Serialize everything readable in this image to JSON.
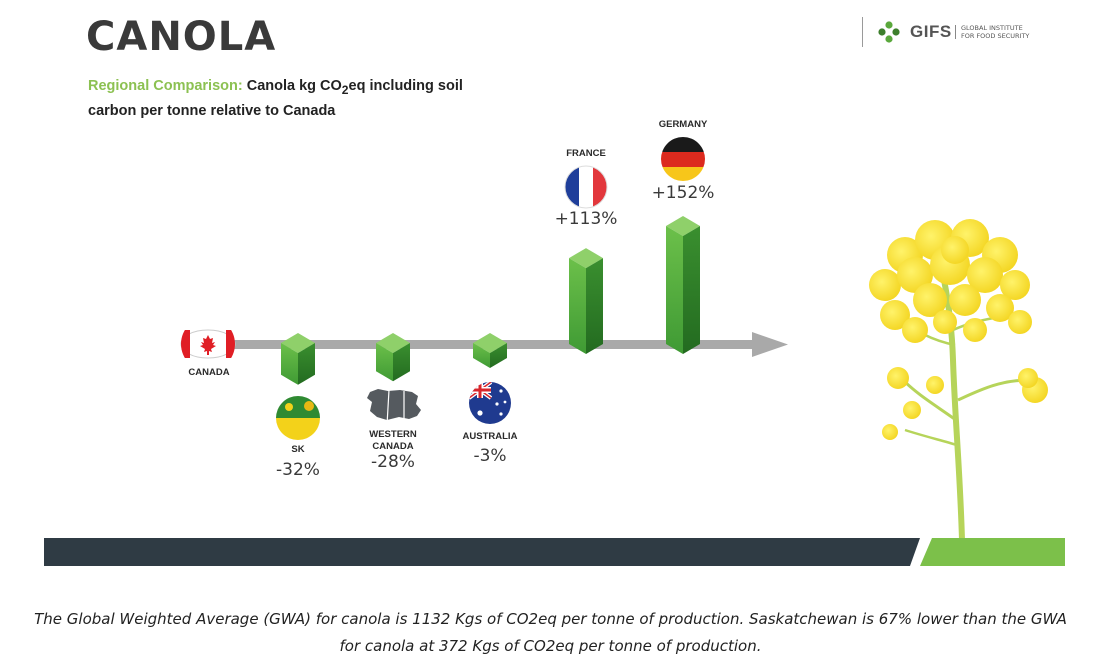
{
  "slide": {
    "title": "CANOLA",
    "subtitle_prefix": "Regional Comparison:",
    "subtitle_main": "Canola kg CO",
    "subtitle_sub": "2",
    "subtitle_rest": "eq including soil carbon per tonne relative to Canada"
  },
  "logo": {
    "name": "GIFS",
    "line1": "GLOBAL INSTITUTE",
    "line2": "FOR FOOD SECURITY",
    "icon": "gifs-flower-icon"
  },
  "chart_data": {
    "type": "bar",
    "title": "Canola kg CO2eq including soil carbon per tonne relative to Canada",
    "baseline": "CANADA",
    "categories": [
      "SK",
      "WESTERN CANADA",
      "AUSTRALIA",
      "FRANCE",
      "GERMANY"
    ],
    "values": [
      -32,
      -28,
      -3,
      113,
      152
    ],
    "value_labels": [
      "-32%",
      "-28%",
      "-3%",
      "+113%",
      "+152%"
    ],
    "label_lines": [
      [
        "SK"
      ],
      [
        "WESTERN",
        "CANADA"
      ],
      [
        "AUSTRALIA"
      ],
      [
        "FRANCE"
      ],
      [
        "GERMANY"
      ]
    ],
    "unit": "% relative to Canada",
    "colors": {
      "bar_front": "#4ea83a",
      "bar_side": "#2d7d27",
      "bar_top": "#8fd06a",
      "axis": "#a9a9a9"
    }
  },
  "caption": "The Global Weighted Average (GWA) for canola is 1132 Kgs of CO2eq per tonne of production. Saskatchewan is 67% lower than the GWA for canola at 372 Kgs of CO2eq per tonne of production."
}
